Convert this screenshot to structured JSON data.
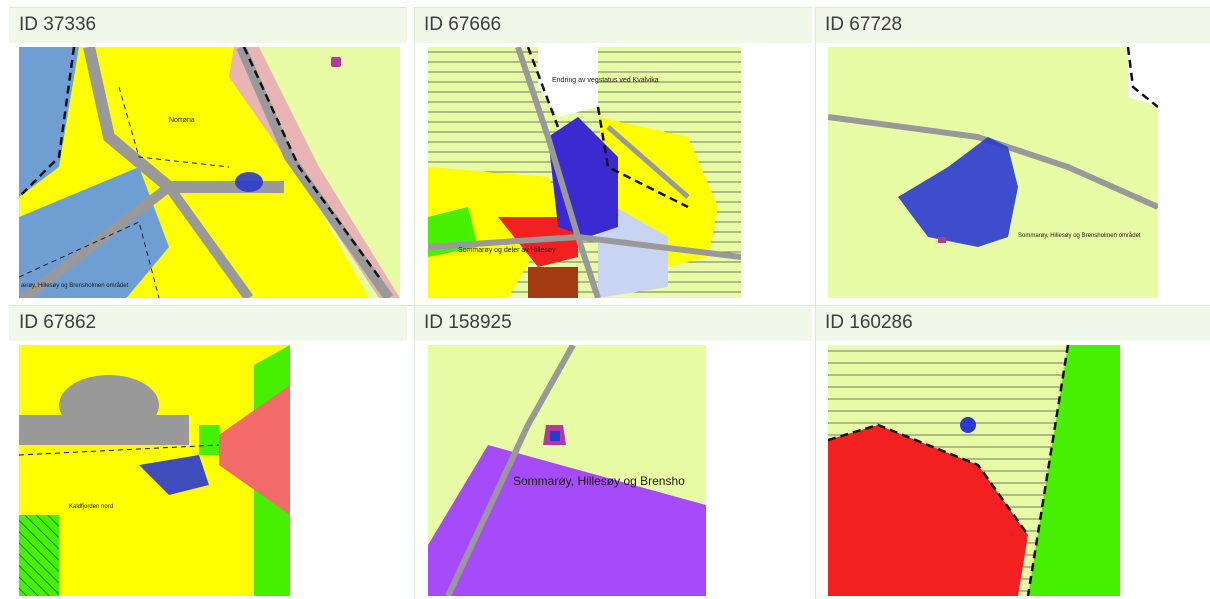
{
  "cells": [
    {
      "id_label": "ID 37336",
      "map_labels": [
        "Norrøna",
        "ærøy, Hillesøy og Brensholmen området"
      ]
    },
    {
      "id_label": "ID 67666",
      "map_labels": [
        "Endring av vegstatus ved Kvalvika",
        "Sommarøy og deler av Hillesøy"
      ]
    },
    {
      "id_label": "ID 67728",
      "map_labels": [
        "Sommarøy, Hillesøy og Brensholmen området"
      ]
    },
    {
      "id_label": "ID 67862",
      "map_labels": [
        "Kaldfjorden nord"
      ]
    },
    {
      "id_label": "ID 158925",
      "map_labels": [
        "Sommarøy, Hillesøy og Brensho"
      ]
    },
    {
      "id_label": "ID 160286",
      "map_labels": []
    }
  ],
  "colors": {
    "yellow_zone": "#ffff00",
    "light_green_zone": "#e8fca6",
    "blue_zone": "#6f9fd2",
    "road": "#999999",
    "road_edge": "#e8b4b4",
    "marker": "#2a3ad0",
    "red_zone": "#f22020",
    "green_zone": "#46f000",
    "purple_zone": "#a64bfa",
    "salmon_zone": "#f46a6a"
  }
}
